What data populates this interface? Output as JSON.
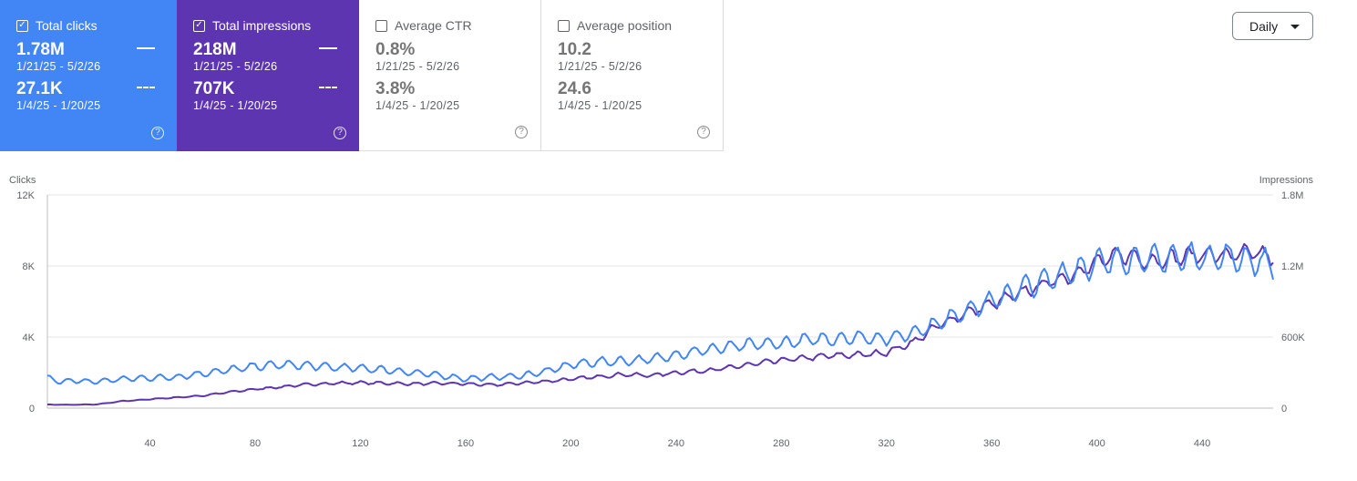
{
  "cards": [
    {
      "key": "clicks",
      "label": "Total clicks",
      "checked": true,
      "color": "#4285f4",
      "current": "1.78M",
      "current_range": "1/21/25 - 5/2/26",
      "previous": "27.1K",
      "previous_range": "1/4/25 - 1/20/25"
    },
    {
      "key": "impressions",
      "label": "Total impressions",
      "checked": true,
      "color": "#5e35b1",
      "current": "218M",
      "current_range": "1/21/25 - 5/2/26",
      "previous": "707K",
      "previous_range": "1/4/25 - 1/20/25"
    },
    {
      "key": "ctr",
      "label": "Average CTR",
      "checked": false,
      "color": "#ffffff",
      "current": "0.8%",
      "current_range": "1/21/25 - 5/2/26",
      "previous": "3.8%",
      "previous_range": "1/4/25 - 1/20/25"
    },
    {
      "key": "position",
      "label": "Average position",
      "checked": false,
      "color": "#ffffff",
      "current": "10.2",
      "current_range": "1/21/25 - 5/2/26",
      "previous": "24.6",
      "previous_range": "1/4/25 - 1/20/25"
    }
  ],
  "granularity": {
    "selected": "Daily"
  },
  "help_glyph": "?",
  "checkbox_glyph": "✓",
  "chart_data": {
    "type": "line",
    "ylabel": "Clicks",
    "y2label": "Impressions",
    "xlim": [
      1,
      467
    ],
    "ylim": [
      0,
      12000
    ],
    "y2lim": [
      0,
      1800000
    ],
    "x_ticks": [
      40,
      80,
      120,
      160,
      200,
      240,
      280,
      320,
      360,
      400,
      440
    ],
    "y_ticks": [
      0,
      4000,
      8000,
      12000
    ],
    "y_tick_labels": [
      "0",
      "4K",
      "8K",
      "12K"
    ],
    "y2_ticks": [
      0,
      600000,
      1200000,
      1800000
    ],
    "y2_tick_labels": [
      "0",
      "600K",
      "1.2M",
      "1.8M"
    ],
    "grid": true,
    "weekly_amplitude_clicks": 0.09,
    "weekly_amplitude_impressions": 0.05,
    "series": [
      {
        "key": "clicks",
        "axis": "left",
        "color": "#4285f4",
        "anchors": [
          [
            1,
            1700
          ],
          [
            5,
            1500
          ],
          [
            10,
            1550
          ],
          [
            15,
            1500
          ],
          [
            20,
            1500
          ],
          [
            30,
            1650
          ],
          [
            40,
            1700
          ],
          [
            50,
            1750
          ],
          [
            60,
            1950
          ],
          [
            70,
            2150
          ],
          [
            80,
            2350
          ],
          [
            90,
            2450
          ],
          [
            100,
            2400
          ],
          [
            110,
            2300
          ],
          [
            120,
            2250
          ],
          [
            130,
            2150
          ],
          [
            140,
            2000
          ],
          [
            150,
            1850
          ],
          [
            160,
            1650
          ],
          [
            170,
            1750
          ],
          [
            180,
            1800
          ],
          [
            190,
            2050
          ],
          [
            200,
            2450
          ],
          [
            210,
            2600
          ],
          [
            220,
            2650
          ],
          [
            230,
            2750
          ],
          [
            240,
            3000
          ],
          [
            250,
            3250
          ],
          [
            260,
            3450
          ],
          [
            270,
            3600
          ],
          [
            280,
            3650
          ],
          [
            290,
            3850
          ],
          [
            300,
            3900
          ],
          [
            310,
            4000
          ],
          [
            320,
            3900
          ],
          [
            330,
            4250
          ],
          [
            340,
            4800
          ],
          [
            350,
            5500
          ],
          [
            360,
            6000
          ],
          [
            370,
            6700
          ],
          [
            380,
            7150
          ],
          [
            390,
            7700
          ],
          [
            400,
            8150
          ],
          [
            410,
            8400
          ],
          [
            420,
            8350
          ],
          [
            430,
            8450
          ],
          [
            440,
            8500
          ],
          [
            450,
            8500
          ],
          [
            460,
            8300
          ],
          [
            467,
            8100
          ]
        ]
      },
      {
        "key": "impressions",
        "axis": "right",
        "color": "#5e35b1",
        "anchors": [
          [
            1,
            30000
          ],
          [
            10,
            28000
          ],
          [
            20,
            32000
          ],
          [
            30,
            60000
          ],
          [
            40,
            75000
          ],
          [
            50,
            90000
          ],
          [
            60,
            105000
          ],
          [
            70,
            135000
          ],
          [
            80,
            160000
          ],
          [
            90,
            180000
          ],
          [
            100,
            200000
          ],
          [
            110,
            210000
          ],
          [
            120,
            215000
          ],
          [
            130,
            210000
          ],
          [
            140,
            205000
          ],
          [
            150,
            210000
          ],
          [
            160,
            205000
          ],
          [
            170,
            195000
          ],
          [
            180,
            210000
          ],
          [
            190,
            225000
          ],
          [
            200,
            245000
          ],
          [
            210,
            265000
          ],
          [
            220,
            285000
          ],
          [
            230,
            275000
          ],
          [
            240,
            300000
          ],
          [
            250,
            315000
          ],
          [
            260,
            340000
          ],
          [
            270,
            375000
          ],
          [
            280,
            405000
          ],
          [
            290,
            425000
          ],
          [
            300,
            445000
          ],
          [
            310,
            450000
          ],
          [
            320,
            470000
          ],
          [
            330,
            555000
          ],
          [
            340,
            700000
          ],
          [
            350,
            800000
          ],
          [
            360,
            880000
          ],
          [
            370,
            960000
          ],
          [
            380,
            1050000
          ],
          [
            390,
            1120000
          ],
          [
            400,
            1230000
          ],
          [
            410,
            1300000
          ],
          [
            420,
            1240000
          ],
          [
            430,
            1270000
          ],
          [
            440,
            1300000
          ],
          [
            450,
            1290000
          ],
          [
            460,
            1310000
          ],
          [
            467,
            1270000
          ]
        ]
      }
    ]
  }
}
